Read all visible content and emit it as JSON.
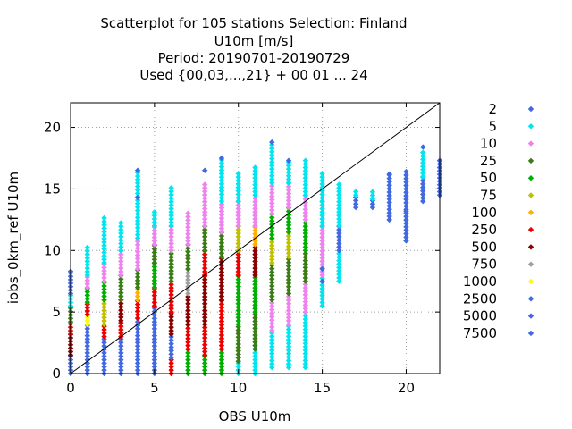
{
  "chart_data": {
    "type": "scatter",
    "title_lines": [
      "Scatterplot for  105 stations Selection: Finland",
      "U10m [m/s]",
      "Period: 20190701-20190729",
      "Used {00,03,...,21} + 00 01 ... 24"
    ],
    "xlabel": "OBS U10m",
    "ylabel": "iobs_0km_ref U10m",
    "xlim": [
      0,
      22
    ],
    "ylim": [
      0,
      22
    ],
    "xticks": [
      0,
      5,
      10,
      15,
      20
    ],
    "yticks": [
      0,
      5,
      10,
      15,
      20
    ],
    "grid": true,
    "legend_position": "right",
    "reference_line": {
      "from": [
        0,
        0
      ],
      "to": [
        22,
        22
      ],
      "color": "#000000"
    },
    "x_columns": [
      0,
      1,
      2,
      3,
      4,
      5,
      6,
      7,
      8,
      9,
      10,
      11,
      12,
      13,
      14,
      15,
      16,
      17,
      18,
      19,
      20,
      21,
      22
    ],
    "series": [
      {
        "name": "2",
        "color": "#4169e1"
      },
      {
        "name": "5",
        "color": "#00e5ee"
      },
      {
        "name": "10",
        "color": "#ee82ee"
      },
      {
        "name": "25",
        "color": "#3a7d16"
      },
      {
        "name": "50",
        "color": "#00b000"
      },
      {
        "name": "75",
        "color": "#c0c000"
      },
      {
        "name": "100",
        "color": "#ffb000"
      },
      {
        "name": "250",
        "color": "#ee0000"
      },
      {
        "name": "500",
        "color": "#8b0000"
      },
      {
        "name": "750",
        "color": "#a0a0a0"
      },
      {
        "name": "1000",
        "color": "#ffff00"
      },
      {
        "name": "2500",
        "color": "#4169e1"
      },
      {
        "name": "5000",
        "color": "#4169e1"
      },
      {
        "name": "7500",
        "color": "#4169e1"
      }
    ],
    "column_bands": [
      {
        "x": 0,
        "min": 0,
        "max": 8.3,
        "bands": [
          [
            0,
            1.5,
            "2"
          ],
          [
            1.5,
            3.2,
            "500"
          ],
          [
            3.2,
            4.2,
            "250"
          ],
          [
            4.2,
            5.5,
            "25"
          ],
          [
            5.5,
            6.5,
            "5"
          ],
          [
            6.5,
            8.3,
            "2"
          ]
        ]
      },
      {
        "x": 1,
        "min": 0,
        "max": 10.3,
        "bands": [
          [
            0,
            4.0,
            "2"
          ],
          [
            4.0,
            4.8,
            "1000"
          ],
          [
            4.8,
            5.8,
            "250"
          ],
          [
            5.8,
            7.0,
            "50"
          ],
          [
            7.0,
            8.0,
            "10"
          ],
          [
            8.0,
            10.3,
            "5"
          ]
        ]
      },
      {
        "x": 2,
        "min": 0,
        "max": 12.7,
        "bands": [
          [
            0,
            3.0,
            "2"
          ],
          [
            3.0,
            4.0,
            "250"
          ],
          [
            4.0,
            6.0,
            "75"
          ],
          [
            6.0,
            7.5,
            "50"
          ],
          [
            7.5,
            9.0,
            "10"
          ],
          [
            9.0,
            12.7,
            "5"
          ]
        ]
      },
      {
        "x": 3,
        "min": 0,
        "max": 12.5,
        "bands": [
          [
            0,
            3.0,
            "2"
          ],
          [
            3.0,
            4.3,
            "250"
          ],
          [
            4.3,
            6.0,
            "500"
          ],
          [
            6.0,
            8.0,
            "25"
          ],
          [
            8.0,
            10.0,
            "10"
          ],
          [
            10.0,
            12.5,
            "5"
          ]
        ]
      },
      {
        "x": 4,
        "min": 0,
        "max": 16.5,
        "bands": [
          [
            0,
            4.5,
            "2"
          ],
          [
            4.5,
            6.0,
            "250"
          ],
          [
            6.0,
            7.0,
            "100"
          ],
          [
            7.0,
            8.5,
            "25"
          ],
          [
            8.5,
            11.0,
            "10"
          ],
          [
            11.0,
            16.5,
            "5"
          ]
        ]
      },
      {
        "x": 5,
        "min": 0,
        "max": 13.2,
        "bands": [
          [
            0,
            5.5,
            "2"
          ],
          [
            5.5,
            7.0,
            "250"
          ],
          [
            7.0,
            9.0,
            "50"
          ],
          [
            9.0,
            10.5,
            "25"
          ],
          [
            10.5,
            12.0,
            "10"
          ],
          [
            12.0,
            13.2,
            "5"
          ]
        ]
      },
      {
        "x": 6,
        "min": 0,
        "max": 15.2,
        "bands": [
          [
            0,
            1.3,
            "250"
          ],
          [
            1.3,
            3.2,
            "2"
          ],
          [
            3.2,
            5.0,
            "500"
          ],
          [
            5.0,
            7.5,
            "250"
          ],
          [
            7.5,
            10.0,
            "25"
          ],
          [
            10.0,
            12.0,
            "10"
          ],
          [
            12.0,
            15.2,
            "5"
          ]
        ]
      },
      {
        "x": 7,
        "min": 0,
        "max": 13.2,
        "bands": [
          [
            0,
            2.0,
            "50"
          ],
          [
            2.0,
            4.0,
            "250"
          ],
          [
            4.0,
            6.5,
            "500"
          ],
          [
            6.5,
            8.5,
            "750"
          ],
          [
            8.5,
            10.5,
            "25"
          ],
          [
            10.5,
            13.2,
            "10"
          ]
        ]
      },
      {
        "x": 8,
        "min": 0,
        "max": 15.5,
        "bands": [
          [
            0,
            1.5,
            "50"
          ],
          [
            1.5,
            4.0,
            "250"
          ],
          [
            4.0,
            8.0,
            "500"
          ],
          [
            8.0,
            10.0,
            "250"
          ],
          [
            10.0,
            12.0,
            "25"
          ],
          [
            12.0,
            15.5,
            "10"
          ]
        ]
      },
      {
        "x": 9,
        "min": 0,
        "max": 17.5,
        "bands": [
          [
            0,
            2.0,
            "50"
          ],
          [
            2.0,
            6.0,
            "250"
          ],
          [
            6.0,
            9.5,
            "500"
          ],
          [
            9.5,
            11.5,
            "25"
          ],
          [
            11.5,
            14.0,
            "10"
          ],
          [
            14.0,
            17.5,
            "5"
          ]
        ]
      },
      {
        "x": 10,
        "min": 0,
        "max": 16.5,
        "bands": [
          [
            0,
            1.0,
            "5"
          ],
          [
            1.0,
            4.0,
            "25"
          ],
          [
            4.0,
            8.0,
            "50"
          ],
          [
            8.0,
            10.0,
            "250"
          ],
          [
            10.0,
            12.0,
            "75"
          ],
          [
            12.0,
            14.0,
            "10"
          ],
          [
            14.0,
            16.5,
            "5"
          ]
        ]
      },
      {
        "x": 11,
        "min": 0,
        "max": 17.0,
        "bands": [
          [
            0,
            2.0,
            "5"
          ],
          [
            2.0,
            5.0,
            "25"
          ],
          [
            5.0,
            8.0,
            "50"
          ],
          [
            8.0,
            10.5,
            "500"
          ],
          [
            10.5,
            12.0,
            "100"
          ],
          [
            12.0,
            14.5,
            "10"
          ],
          [
            14.5,
            17.0,
            "5"
          ]
        ]
      },
      {
        "x": 12,
        "min": 0.5,
        "max": 18.8,
        "bands": [
          [
            0.5,
            3.5,
            "5"
          ],
          [
            3.5,
            6.0,
            "10"
          ],
          [
            6.0,
            9.0,
            "25"
          ],
          [
            9.0,
            11.0,
            "75"
          ],
          [
            11.0,
            13.0,
            "50"
          ],
          [
            13.0,
            15.5,
            "10"
          ],
          [
            15.5,
            18.8,
            "5"
          ]
        ]
      },
      {
        "x": 13,
        "min": 0.5,
        "max": 17.3,
        "bands": [
          [
            0.5,
            4.0,
            "5"
          ],
          [
            4.0,
            6.5,
            "10"
          ],
          [
            6.5,
            9.5,
            "25"
          ],
          [
            9.5,
            11.5,
            "75"
          ],
          [
            11.5,
            13.5,
            "50"
          ],
          [
            13.5,
            15.5,
            "10"
          ],
          [
            15.5,
            17.3,
            "5"
          ]
        ]
      },
      {
        "x": 14,
        "min": 0.5,
        "max": 17.3,
        "bands": [
          [
            0.5,
            5.0,
            "5"
          ],
          [
            5.0,
            7.5,
            "10"
          ],
          [
            7.5,
            10.0,
            "25"
          ],
          [
            10.0,
            12.5,
            "50"
          ],
          [
            12.5,
            14.5,
            "10"
          ],
          [
            14.5,
            17.3,
            "5"
          ]
        ]
      },
      {
        "x": 15,
        "min": 5.5,
        "max": 16.5,
        "bands": [
          [
            5.5,
            8.0,
            "5"
          ],
          [
            8.0,
            12.0,
            "10"
          ],
          [
            12.0,
            14.0,
            "5"
          ],
          [
            14.0,
            16.5,
            "5"
          ]
        ]
      },
      {
        "x": 16,
        "min": 7.5,
        "max": 15.5,
        "bands": [
          [
            7.5,
            10.0,
            "5"
          ],
          [
            10.0,
            12.0,
            "2"
          ],
          [
            12.0,
            15.5,
            "5"
          ]
        ]
      },
      {
        "x": 17,
        "min": 13.5,
        "max": 15.0,
        "bands": [
          [
            13.5,
            14.5,
            "2"
          ],
          [
            14.5,
            15.0,
            "5"
          ]
        ]
      },
      {
        "x": 18,
        "min": 13.5,
        "max": 15.0,
        "bands": [
          [
            13.5,
            14.2,
            "2"
          ],
          [
            14.2,
            15.0,
            "5"
          ]
        ]
      },
      {
        "x": 19,
        "min": 12.5,
        "max": 16.2,
        "bands": [
          [
            12.5,
            16.2,
            "2"
          ]
        ]
      },
      {
        "x": 20,
        "min": 10.8,
        "max": 16.5,
        "bands": [
          [
            10.8,
            16.5,
            "2"
          ]
        ]
      },
      {
        "x": 21,
        "min": 14.0,
        "max": 18.2,
        "bands": [
          [
            14.0,
            16.0,
            "2"
          ],
          [
            16.0,
            18.2,
            "5"
          ]
        ]
      },
      {
        "x": 22,
        "min": 14.5,
        "max": 17.3,
        "bands": [
          [
            14.5,
            17.3,
            "2"
          ]
        ]
      }
    ],
    "outliers": [
      [
        0,
        8.3
      ],
      [
        4,
        16.5
      ],
      [
        4,
        14.3
      ],
      [
        8,
        16.5
      ],
      [
        9,
        17.5
      ],
      [
        12,
        18.8
      ],
      [
        13,
        17.3
      ],
      [
        19,
        16.2
      ],
      [
        19,
        12.5
      ],
      [
        20,
        10.8
      ],
      [
        20,
        13.2
      ],
      [
        21,
        18.4
      ],
      [
        22,
        17.3
      ],
      [
        15,
        7.5
      ],
      [
        15,
        8.5
      ]
    ]
  }
}
